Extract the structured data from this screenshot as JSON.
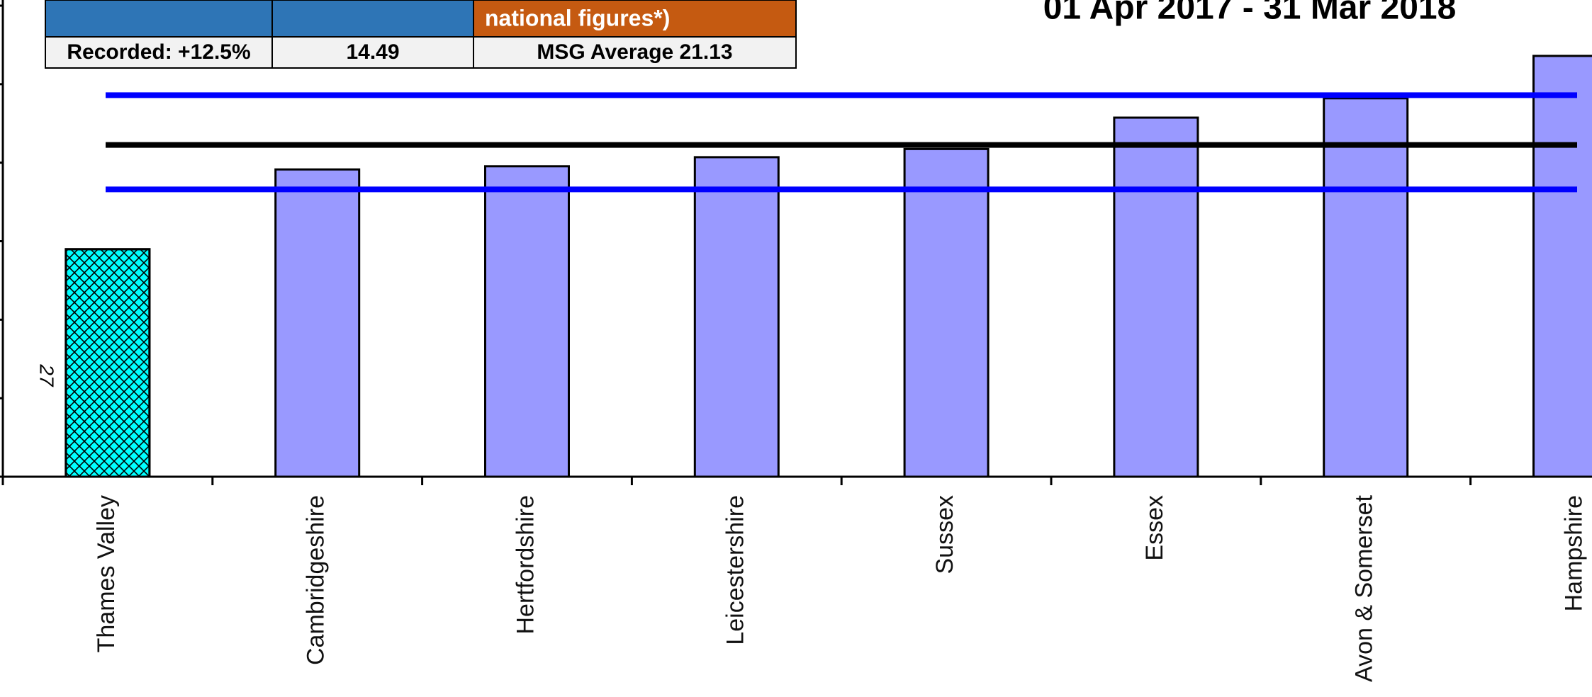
{
  "chart_data": {
    "type": "bar",
    "title": "01 Apr 2017 - 31 Mar 2018",
    "categories": [
      "Thames Valley",
      "Cambridgeshire",
      "Hertfordshire",
      "Leicestershire",
      "Sussex",
      "Essex",
      "Avon & Somerset",
      "Hampshire"
    ],
    "values": [
      14.49,
      19.57,
      19.77,
      20.35,
      20.87,
      22.87,
      24.1,
      26.8
    ],
    "colors": [
      "#00ffff",
      "#9999ff",
      "#9999ff",
      "#9999ff",
      "#9999ff",
      "#9999ff",
      "#9999ff",
      "#9999ff"
    ],
    "hatch": [
      true,
      false,
      false,
      false,
      false,
      false,
      false,
      false
    ],
    "annotation": "27",
    "reference_lines": [
      {
        "value": 24.3,
        "color": "#0000ff"
      },
      {
        "value": 21.13,
        "color": "#000000"
      },
      {
        "value": 18.3,
        "color": "#0000ff"
      }
    ],
    "ylim": [
      0,
      30
    ],
    "yticks": [
      0,
      5,
      10,
      15,
      20,
      25,
      30
    ],
    "table": {
      "header": [
        "",
        "",
        "national figures*)"
      ],
      "header_colors": [
        "#2e75b6",
        "#2e75b6",
        "#c55a11"
      ],
      "row": [
        "Recorded: +12.5%",
        "14.49",
        "MSG Average 21.13"
      ]
    }
  }
}
